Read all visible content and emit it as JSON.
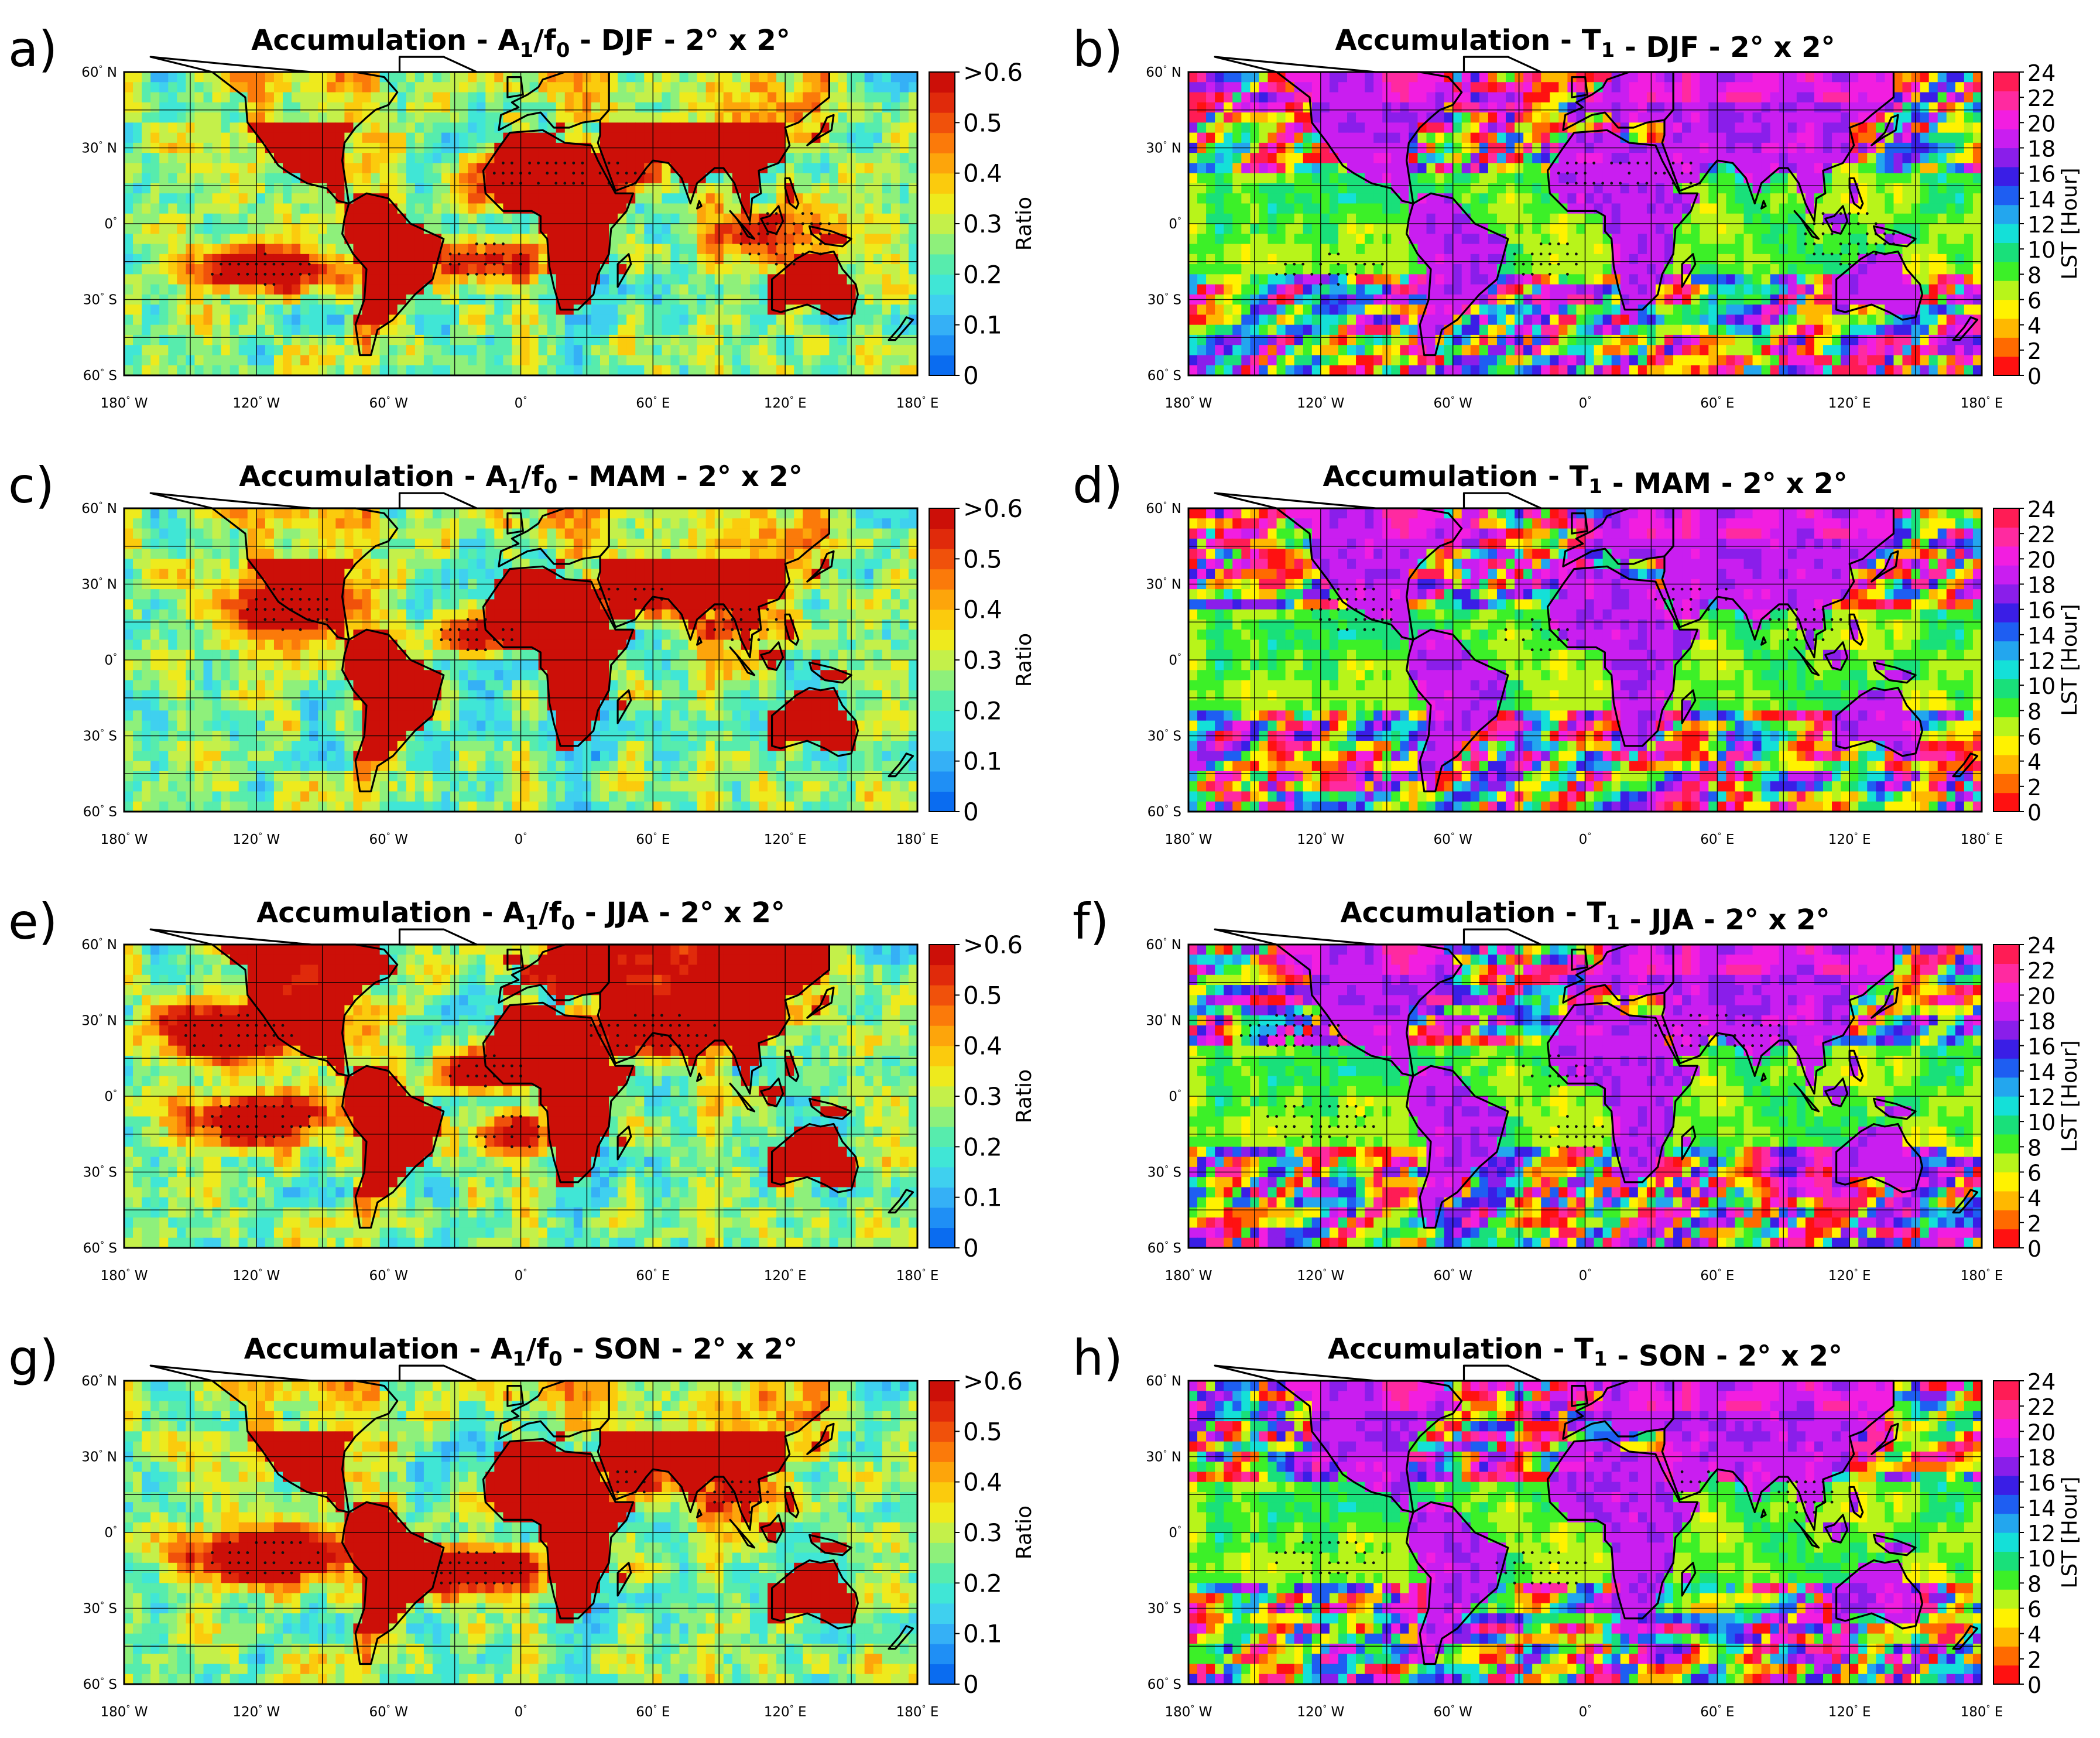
{
  "figure": {
    "panels": [
      {
        "letter": "a)",
        "title_prefix": "Accumulation - ",
        "title_symbol": "A",
        "title_sub1": "1",
        "title_slash": "/f",
        "title_sub2": "0",
        "title_suffix": " - DJF - 2° x 2°",
        "colormap": "ratio",
        "season": "DJF",
        "variable": "A1/f0"
      },
      {
        "letter": "b)",
        "title_prefix": "Accumulation - ",
        "title_symbol": "T",
        "title_sub1": "1",
        "title_slash": "",
        "title_sub2": "",
        "title_suffix": " - DJF - 2° x 2°",
        "colormap": "lst",
        "season": "DJF",
        "variable": "T1"
      },
      {
        "letter": "c)",
        "title_prefix": "Accumulation - ",
        "title_symbol": "A",
        "title_sub1": "1",
        "title_slash": "/f",
        "title_sub2": "0",
        "title_suffix": " - MAM - 2° x 2°",
        "colormap": "ratio",
        "season": "MAM",
        "variable": "A1/f0"
      },
      {
        "letter": "d)",
        "title_prefix": "Accumulation - ",
        "title_symbol": "T",
        "title_sub1": "1",
        "title_slash": "",
        "title_sub2": "",
        "title_suffix": " - MAM - 2° x 2°",
        "colormap": "lst",
        "season": "MAM",
        "variable": "T1"
      },
      {
        "letter": "e)",
        "title_prefix": "Accumulation - ",
        "title_symbol": "A",
        "title_sub1": "1",
        "title_slash": "/f",
        "title_sub2": "0",
        "title_suffix": " - JJA - 2° x 2°",
        "colormap": "ratio",
        "season": "JJA",
        "variable": "A1/f0"
      },
      {
        "letter": "f)",
        "title_prefix": "Accumulation - ",
        "title_symbol": "T",
        "title_sub1": "1",
        "title_slash": "",
        "title_sub2": "",
        "title_suffix": " - JJA - 2° x 2°",
        "colormap": "lst",
        "season": "JJA",
        "variable": "T1"
      },
      {
        "letter": "g)",
        "title_prefix": "Accumulation - ",
        "title_symbol": "A",
        "title_sub1": "1",
        "title_slash": "/f",
        "title_sub2": "0",
        "title_suffix": " - SON - 2° x 2°",
        "colormap": "ratio",
        "season": "SON",
        "variable": "A1/f0"
      },
      {
        "letter": "h)",
        "title_prefix": "Accumulation - ",
        "title_symbol": "T",
        "title_sub1": "1",
        "title_slash": "",
        "title_sub2": "",
        "title_suffix": " - SON - 2° x 2°",
        "colormap": "lst",
        "season": "SON",
        "variable": "T1"
      }
    ],
    "x_ticks": [
      {
        "value": -180,
        "num": "180",
        "unit": " W"
      },
      {
        "value": -120,
        "num": "120",
        "unit": " W"
      },
      {
        "value": -60,
        "num": "60",
        "unit": " W"
      },
      {
        "value": 0,
        "num": "0",
        "unit": ""
      },
      {
        "value": 60,
        "num": "60",
        "unit": " E"
      },
      {
        "value": 120,
        "num": "120",
        "unit": " E"
      },
      {
        "value": 180,
        "num": "180",
        "unit": " E"
      }
    ],
    "y_ticks": [
      {
        "value": 60,
        "num": "60",
        "unit": " N"
      },
      {
        "value": 30,
        "num": "30",
        "unit": " N"
      },
      {
        "value": 0,
        "num": "0",
        "unit": ""
      },
      {
        "value": -30,
        "num": "30",
        "unit": " S"
      },
      {
        "value": -60,
        "num": "60",
        "unit": " S"
      }
    ],
    "colorbars": {
      "ratio": {
        "label": "Ratio",
        "min": 0,
        "max": 0.6,
        "ticks": [
          {
            "value": 0,
            "label": "0"
          },
          {
            "value": 0.1,
            "label": "0.1"
          },
          {
            "value": 0.2,
            "label": "0.2"
          },
          {
            "value": 0.3,
            "label": "0.3"
          },
          {
            "value": 0.4,
            "label": "0.4"
          },
          {
            "value": 0.5,
            "label": "0.5"
          },
          {
            "value": 0.6,
            "label": ">0.6"
          }
        ],
        "colors": [
          "#0a6cf0",
          "#1f8ff5",
          "#35b0f6",
          "#3fd0ef",
          "#40e6d6",
          "#57ecad",
          "#8ef07b",
          "#c4f04a",
          "#eeea1d",
          "#fbcb0d",
          "#fda50b",
          "#fb7a0a",
          "#f0510b",
          "#e02a0b",
          "#cc0f08"
        ]
      },
      "lst": {
        "label": "LST [Hour]",
        "min": 0,
        "max": 24,
        "ticks": [
          {
            "value": 0,
            "label": "0"
          },
          {
            "value": 2,
            "label": "2"
          },
          {
            "value": 4,
            "label": "4"
          },
          {
            "value": 6,
            "label": "6"
          },
          {
            "value": 8,
            "label": "8"
          },
          {
            "value": 10,
            "label": "10"
          },
          {
            "value": 12,
            "label": "12"
          },
          {
            "value": 14,
            "label": "14"
          },
          {
            "value": 16,
            "label": "16"
          },
          {
            "value": 18,
            "label": "18"
          },
          {
            "value": 20,
            "label": "20"
          },
          {
            "value": 22,
            "label": "22"
          },
          {
            "value": 24,
            "label": "24"
          }
        ],
        "colors": [
          "#ff1111",
          "#ff6a00",
          "#ffb800",
          "#fff200",
          "#b8f41a",
          "#3cf028",
          "#19e07a",
          "#14e0d8",
          "#23a6ee",
          "#1e5ef2",
          "#3a1ee6",
          "#8a1eea",
          "#c91ef0",
          "#f21ee0",
          "#ff2aa0",
          "#ff1c55"
        ]
      }
    }
  },
  "chart_data": [
    {
      "type": "heatmap",
      "title": "Accumulation - A1/f0 - DJF - 2° x 2°",
      "colorbar_label": "Ratio",
      "value_range": [
        0,
        0.6
      ],
      "x_range": [
        -180,
        180
      ],
      "y_range": [
        -60,
        60
      ],
      "x_ticks": [
        "180° W",
        "120° W",
        "60° W",
        "0°",
        "60° E",
        "120° E",
        "180° E"
      ],
      "y_ticks": [
        "60° N",
        "30° N",
        "0°",
        "30° S",
        "60° S"
      ],
      "high_regions": [
        "South America",
        "Africa",
        "Arabia",
        "Maritime Continent",
        "Australia",
        "SE Pacific",
        "S Atlantic"
      ],
      "low_regions": [
        "N Pacific",
        "N Atlantic",
        "Southern Ocean"
      ]
    },
    {
      "type": "heatmap",
      "title": "Accumulation - T1 - DJF - 2° x 2°",
      "colorbar_label": "LST [Hour]",
      "value_range": [
        0,
        24
      ],
      "land_value_hours": 19,
      "ocean_value_hours": 8
    },
    {
      "type": "heatmap",
      "title": "Accumulation - A1/f0 - MAM - 2° x 2°",
      "colorbar_label": "Ratio",
      "value_range": [
        0,
        0.6
      ],
      "high_regions": [
        "Mexico/Central America",
        "South America",
        "Africa",
        "Arabia/India",
        "Maritime Continent",
        "N Australia"
      ]
    },
    {
      "type": "heatmap",
      "title": "Accumulation - T1 - MAM - 2° x 2°",
      "colorbar_label": "LST [Hour]",
      "value_range": [
        0,
        24
      ],
      "land_value_hours": 19,
      "ocean_value_hours": 8
    },
    {
      "type": "heatmap",
      "title": "Accumulation - A1/f0 - JJA - 2° x 2°",
      "colorbar_label": "Ratio",
      "value_range": [
        0,
        0.6
      ],
      "high_regions": [
        "North America",
        "E Pacific",
        "Sahel/Africa",
        "Arabia/Asia",
        "Maritime Continent"
      ]
    },
    {
      "type": "heatmap",
      "title": "Accumulation - T1 - JJA - 2° x 2°",
      "colorbar_label": "LST [Hour]",
      "value_range": [
        0,
        24
      ],
      "land_value_hours": 18,
      "ocean_value_hours": 8
    },
    {
      "type": "heatmap",
      "title": "Accumulation - A1/f0 - SON - 2° x 2°",
      "colorbar_label": "Ratio",
      "value_range": [
        0,
        0.6
      ],
      "high_regions": [
        "SE Pacific",
        "South America",
        "Africa",
        "S Atlantic",
        "Arabia",
        "Maritime Continent",
        "Australia"
      ]
    },
    {
      "type": "heatmap",
      "title": "Accumulation - T1 - SON - 2° x 2°",
      "colorbar_label": "LST [Hour]",
      "value_range": [
        0,
        24
      ],
      "land_value_hours": 19,
      "ocean_value_hours": 8
    }
  ]
}
